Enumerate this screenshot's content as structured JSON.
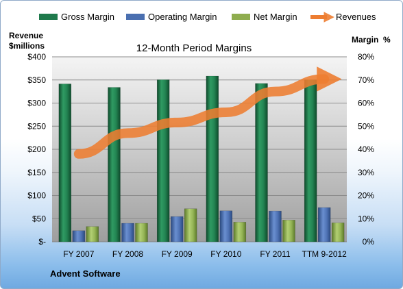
{
  "legend": [
    {
      "label": "Gross Margin",
      "color": "#1f7a4c"
    },
    {
      "label": "Operating Margin",
      "color": "#4a6fb0"
    },
    {
      "label": "Net Margin",
      "color": "#8fad4f"
    },
    {
      "label": "Revenues",
      "color": "#ed7d31"
    }
  ],
  "footer_label": "Advent Software",
  "chart_data": {
    "type": "bar",
    "title": "12-Month Period Margins",
    "left_axis_title_line1": "Revenue",
    "left_axis_title_line2": "$millions",
    "right_axis_title": "Margin  %",
    "categories": [
      "FY 2007",
      "FY 2008",
      "FY 2009",
      "FY 2010",
      "FY 2011",
      "TTM 9-2012"
    ],
    "left_ticks": [
      "$400",
      "$350",
      "$300",
      "$250",
      "$200",
      "$150",
      "$100",
      "$50",
      "$-"
    ],
    "right_ticks": [
      "80%",
      "70%",
      "60%",
      "50%",
      "40%",
      "30%",
      "20%",
      "10%",
      "0%"
    ],
    "ylim_left": [
      0,
      400
    ],
    "ylim_right": [
      0,
      80
    ],
    "grid": "horizontal",
    "legend_position": "top",
    "series": [
      {
        "name": "Gross Margin",
        "axis": "right",
        "values": [
          68.3,
          66.8,
          70.1,
          71.7,
          68.5,
          70.1
        ],
        "color": "#1f7a4c"
      },
      {
        "name": "Operating Margin",
        "axis": "right",
        "values": [
          4.8,
          8.0,
          10.9,
          13.4,
          13.3,
          14.8
        ],
        "color": "#4a6fb0"
      },
      {
        "name": "Net Margin",
        "axis": "right",
        "values": [
          6.6,
          8.0,
          14.3,
          8.5,
          9.4,
          8.2
        ],
        "color": "#8fad4f"
      },
      {
        "name": "Revenues",
        "axis": "left",
        "type": "line",
        "values": [
          190,
          235,
          258,
          280,
          325,
          352
        ],
        "color": "#ed7d31"
      }
    ]
  }
}
